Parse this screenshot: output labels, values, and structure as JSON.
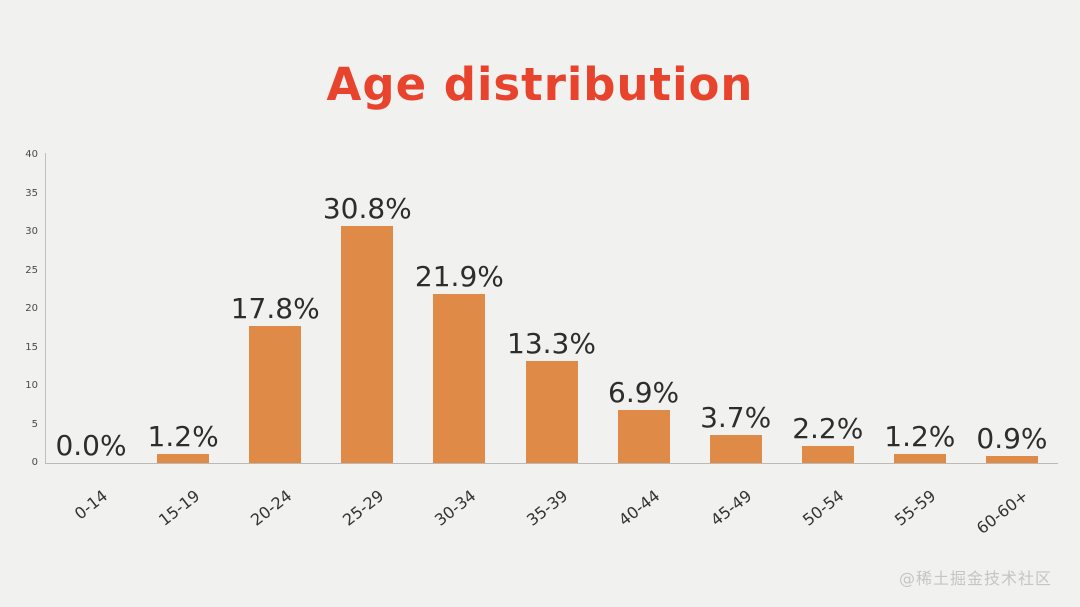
{
  "title": "Age distribution",
  "watermark": "@稀土掘金技术社区",
  "colors": {
    "background": "#f1f1ef",
    "title": "#e8432c",
    "bar": "#e08a47",
    "value_label": "#2d2d2d",
    "axis_line": "#bfbfbd",
    "tick_text": "#4a4a4a",
    "watermark": "#c5c5c3"
  },
  "chart_data": {
    "type": "bar",
    "title": "Age distribution",
    "categories": [
      "0-14",
      "15-19",
      "20-24",
      "25-29",
      "30-34",
      "35-39",
      "40-44",
      "45-49",
      "50-54",
      "55-59",
      "60-60+"
    ],
    "values": [
      0.0,
      1.2,
      17.8,
      30.8,
      21.9,
      13.3,
      6.9,
      3.7,
      2.2,
      1.2,
      0.9
    ],
    "value_labels": [
      "0.0%",
      "1.2%",
      "17.8%",
      "30.8%",
      "21.9%",
      "13.3%",
      "6.9%",
      "3.7%",
      "2.2%",
      "1.2%",
      "0.9%"
    ],
    "xlabel": "",
    "ylabel": "",
    "ylim": [
      0,
      40
    ],
    "yticks": [
      0,
      5,
      10,
      15,
      20,
      25,
      30,
      35,
      40
    ],
    "grid": false,
    "legend": false,
    "bar_color": "#e08a47"
  }
}
